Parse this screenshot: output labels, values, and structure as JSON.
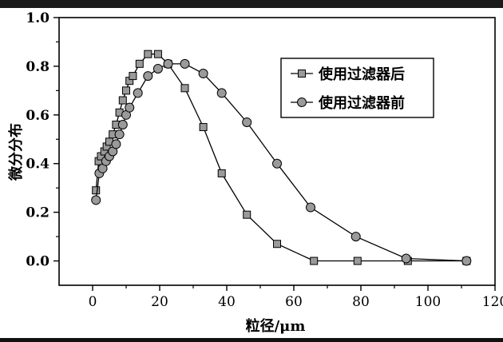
{
  "chart_data": {
    "type": "line",
    "xlabel": "粒径/μm",
    "ylabel": "微分分布",
    "xlim": [
      -10,
      120
    ],
    "ylim": [
      -0.1,
      1.0
    ],
    "x_ticks": [
      "0",
      "20",
      "40",
      "60",
      "80",
      "100",
      "120"
    ],
    "y_ticks": [
      "0.0",
      "0.2",
      "0.4",
      "0.6",
      "0.8",
      "1.0"
    ],
    "grid": false,
    "legend_position": "top-right",
    "series": [
      {
        "name": "使用过滤器后",
        "marker": "square",
        "color": "#9a9a9a",
        "x": [
          1.0,
          1.8,
          2.5,
          3.5,
          4.2,
          5.0,
          6.0,
          7.0,
          8.0,
          9.0,
          10.0,
          11.0,
          12.0,
          14.0,
          16.5,
          19.5,
          22.5,
          27.5,
          33.0,
          38.5,
          46.0,
          55.0,
          66.0,
          79.0,
          94.0,
          111.5
        ],
        "y": [
          0.29,
          0.41,
          0.43,
          0.45,
          0.47,
          0.49,
          0.52,
          0.56,
          0.61,
          0.66,
          0.7,
          0.74,
          0.76,
          0.81,
          0.85,
          0.85,
          0.81,
          0.71,
          0.55,
          0.36,
          0.19,
          0.07,
          0.0,
          0.0,
          0.0,
          0.0
        ]
      },
      {
        "name": "使用过滤器前",
        "marker": "circle",
        "color": "#9a9a9a",
        "x": [
          1.0,
          2.0,
          3.0,
          4.0,
          5.0,
          6.0,
          7.0,
          8.0,
          9.0,
          10.0,
          11.0,
          13.5,
          16.5,
          19.5,
          22.5,
          27.5,
          33.0,
          38.5,
          46.0,
          55.0,
          65.0,
          78.5,
          93.5,
          111.5
        ],
        "y": [
          0.25,
          0.36,
          0.38,
          0.41,
          0.43,
          0.45,
          0.48,
          0.52,
          0.56,
          0.6,
          0.63,
          0.69,
          0.76,
          0.79,
          0.81,
          0.81,
          0.77,
          0.69,
          0.57,
          0.4,
          0.22,
          0.1,
          0.01,
          0.0
        ]
      }
    ]
  }
}
